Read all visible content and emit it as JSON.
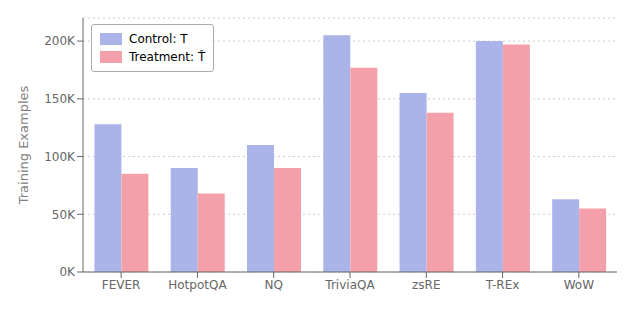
{
  "chart_data": {
    "type": "bar",
    "categories": [
      "FEVER",
      "HotpotQA",
      "NQ",
      "TriviaQA",
      "zsRE",
      "T-REx",
      "WoW"
    ],
    "series": [
      {
        "name": "Control: T",
        "color": "#aab4e8",
        "values": [
          128000,
          90000,
          110000,
          205000,
          155000,
          200000,
          63000
        ]
      },
      {
        "name": "Treatment: T̂",
        "color": "#f4a0aa",
        "values": [
          85000,
          68000,
          90000,
          177000,
          138000,
          197000,
          55000
        ]
      }
    ],
    "ylabel": "Training Examples",
    "ylim": [
      0,
      220000
    ],
    "yticks": [
      {
        "value": 0,
        "label": "0K"
      },
      {
        "value": 50000,
        "label": "50K"
      },
      {
        "value": 100000,
        "label": "100K"
      },
      {
        "value": 150000,
        "label": "150K"
      },
      {
        "value": 200000,
        "label": "200K"
      }
    ],
    "grid": true,
    "legend": "upper left"
  }
}
